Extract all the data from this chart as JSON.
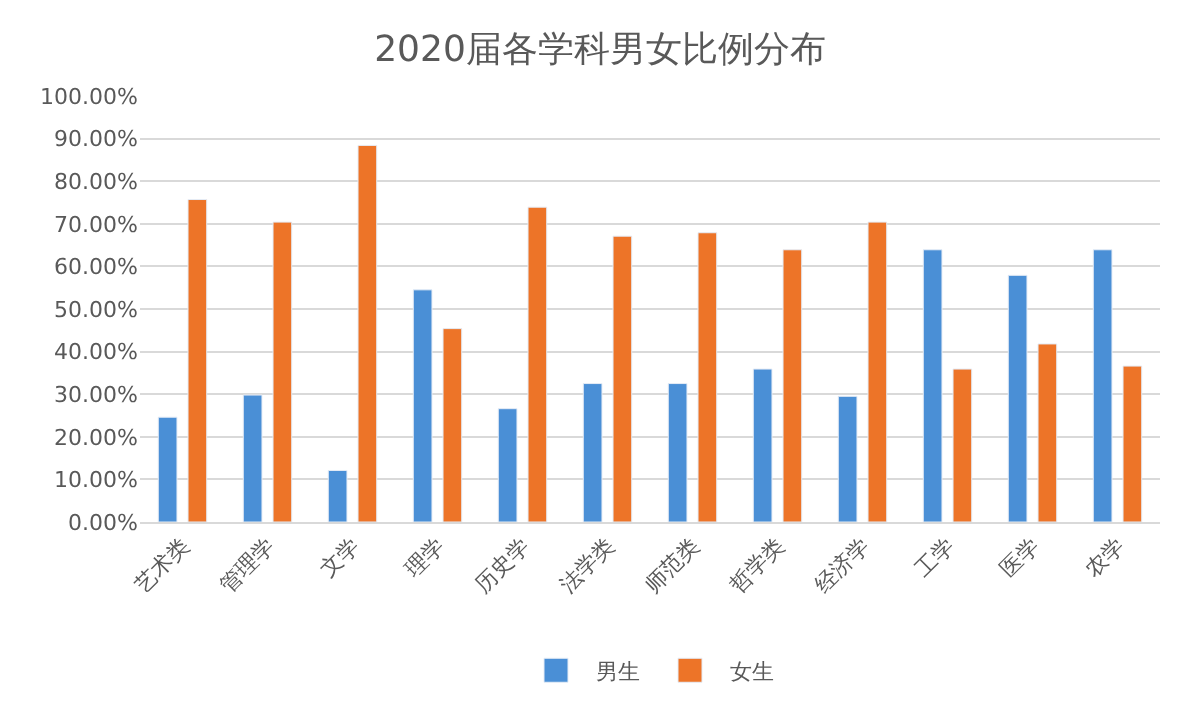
{
  "chart_data": {
    "type": "bar",
    "title": "2020届各学科男女比例分布",
    "categories": [
      "艺术类",
      "管理学",
      "文学",
      "理学",
      "历史学",
      "法学类",
      "师范类",
      "哲学类",
      "经济学",
      "工学",
      "医学",
      "农学"
    ],
    "series": [
      {
        "name": "男生",
        "color": "#4a8fd6",
        "values": [
          24.6,
          29.8,
          12.1,
          54.5,
          26.6,
          32.5,
          32.5,
          35.9,
          29.5,
          63.9,
          57.9,
          63.9
        ]
      },
      {
        "name": "女生",
        "color": "#ed7428",
        "values": [
          75.7,
          70.4,
          88.4,
          45.4,
          73.9,
          67.1,
          67.9,
          63.9,
          70.4,
          35.9,
          41.8,
          36.6
        ]
      }
    ],
    "ylim": [
      0,
      100
    ],
    "yticks": [
      {
        "value": 0,
        "label": "0.00%"
      },
      {
        "value": 10,
        "label": "10.00%"
      },
      {
        "value": 20,
        "label": "20.00%"
      },
      {
        "value": 30,
        "label": "30.00%"
      },
      {
        "value": 40,
        "label": "40.00%"
      },
      {
        "value": 50,
        "label": "50.00%"
      },
      {
        "value": 60,
        "label": "60.00%"
      },
      {
        "value": 70,
        "label": "70.00%"
      },
      {
        "value": 80,
        "label": "80.00%"
      },
      {
        "value": 90,
        "label": "90.00%"
      },
      {
        "value": 100,
        "label": "100.00%"
      }
    ],
    "grid": "y",
    "legend": "bottom"
  }
}
